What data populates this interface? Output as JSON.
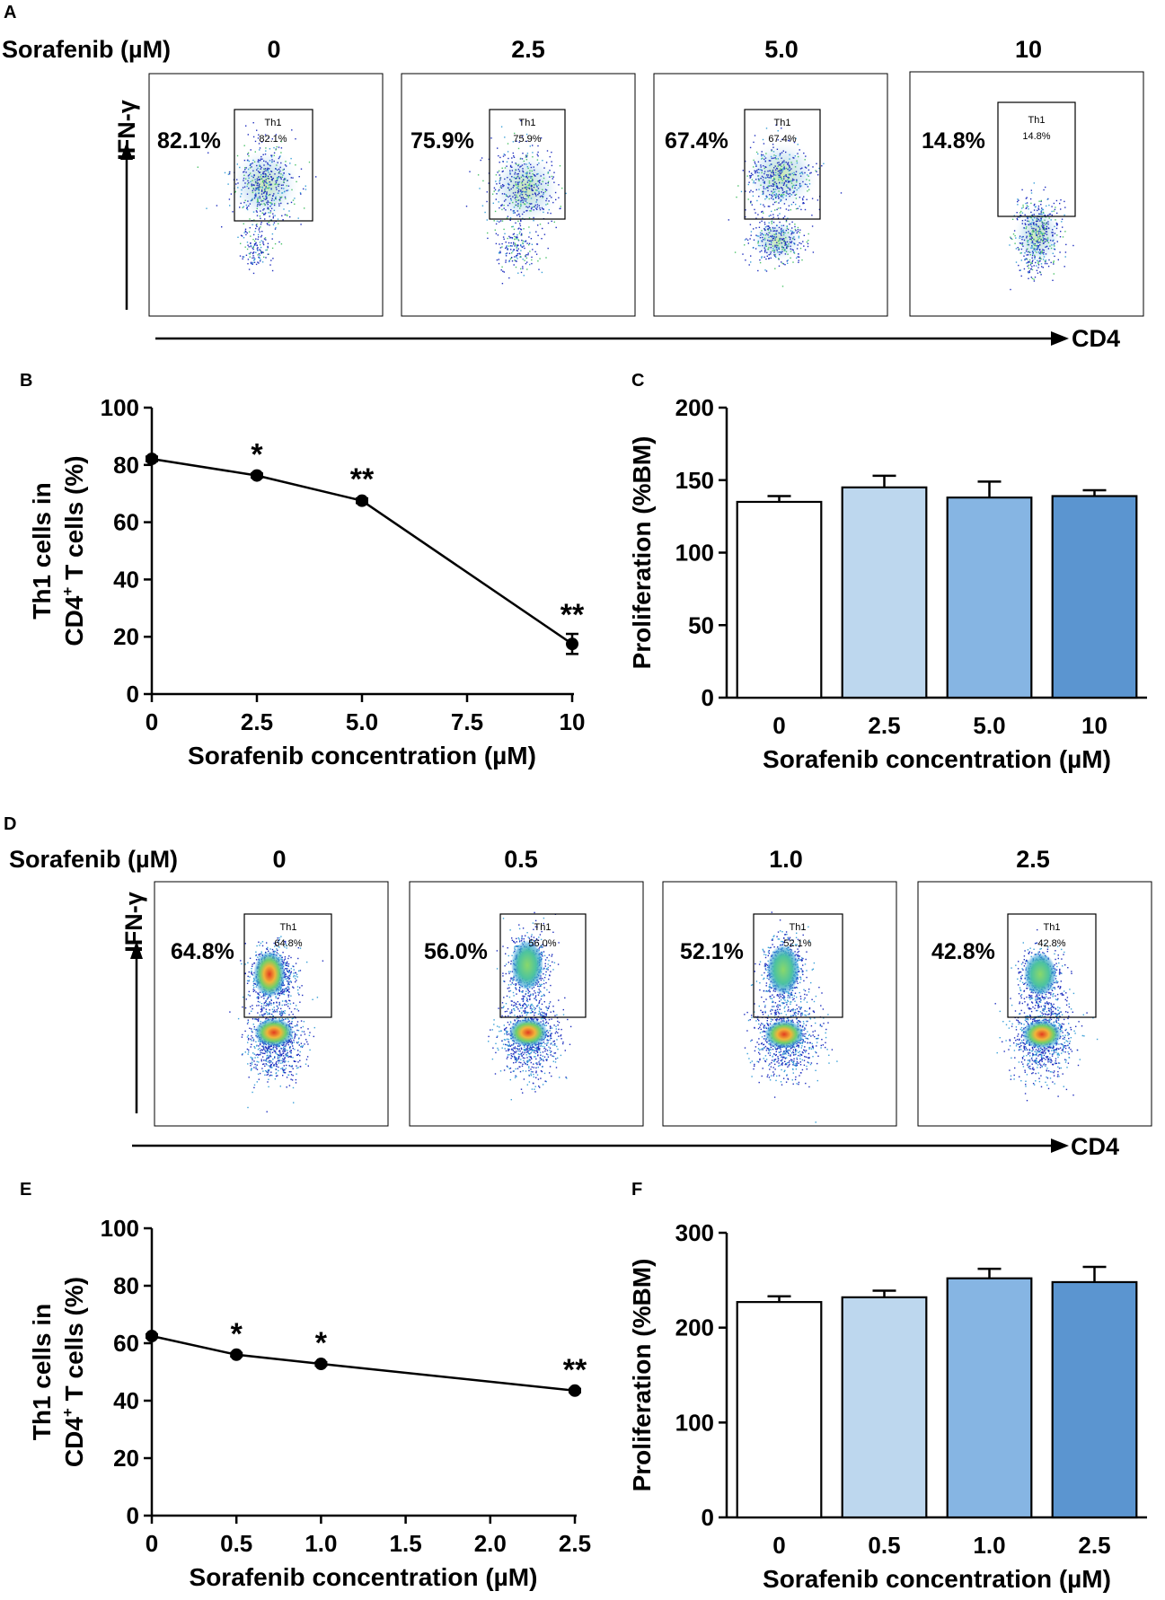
{
  "panels": {
    "A": {
      "letter": "A",
      "header_label": "Sorafenib (µM)",
      "concentrations": [
        "0",
        "2.5",
        "5.0",
        "10"
      ],
      "percents": [
        "82.1%",
        "75.9%",
        "67.4%",
        "14.8%"
      ],
      "gate_label": "Th1",
      "gate_values": [
        "82.1%",
        "75.9%",
        "67.4%",
        "14.8%"
      ],
      "y_axis": "IFN-γ",
      "x_axis": "CD4"
    },
    "D": {
      "letter": "D",
      "header_label": "Sorafenib (µM)",
      "concentrations": [
        "0",
        "0.5",
        "1.0",
        "2.5"
      ],
      "percents": [
        "64.8%",
        "56.0%",
        "52.1%",
        "42.8%"
      ],
      "gate_label": "Th1",
      "gate_values": [
        "64.8%",
        "56.0%",
        "52.1%",
        "42.8%"
      ],
      "y_axis": "IFN-γ",
      "x_axis": "CD4"
    },
    "B": {
      "letter": "B"
    },
    "C": {
      "letter": "C"
    },
    "E": {
      "letter": "E"
    },
    "F": {
      "letter": "F"
    }
  },
  "colors": {
    "ink": "#000000",
    "bar_fills": [
      "#ffffff",
      "#bdd7ee",
      "#86b5e3",
      "#5b95d0"
    ],
    "flow_low": "#1f2fbf",
    "flow_mid": "#3aa0d8",
    "flow_high": "#4cc36a",
    "flow_peak": "#f1e03a",
    "flow_hot": "#e23b1f"
  },
  "chart_data": [
    {
      "id": "B",
      "type": "line",
      "x": [
        0,
        2.5,
        5.0,
        10
      ],
      "y": [
        82.1,
        76.3,
        67.5,
        17.5
      ],
      "yerr": [
        0.8,
        0.7,
        0.8,
        3.5
      ],
      "significance": [
        "",
        "*",
        "**",
        "**"
      ],
      "xticks": [
        "0",
        "2.5",
        "5.0",
        "7.5",
        "10"
      ],
      "xtick_values": [
        0,
        2.5,
        5.0,
        7.5,
        10
      ],
      "yticks": [
        "0",
        "20",
        "40",
        "60",
        "80",
        "100"
      ],
      "xlim": [
        0,
        10
      ],
      "ylim": [
        0,
        100
      ],
      "ylabel_line1": "Th1 cells in",
      "ylabel_line2_pre": "CD4",
      "ylabel_line2_sup": "+",
      "ylabel_line2_post": " T cells (%)",
      "xlabel": "Sorafenib concentration (µM)"
    },
    {
      "id": "C",
      "type": "bar",
      "categories": [
        "0",
        "2.5",
        "5.0",
        "10"
      ],
      "values": [
        135,
        145,
        138,
        139
      ],
      "errors": [
        4,
        8,
        11,
        4
      ],
      "yticks": [
        "0",
        "50",
        "100",
        "150",
        "200"
      ],
      "ylim": [
        0,
        200
      ],
      "ylabel": "Proliferation (%BM)",
      "xlabel": "Sorafenib concentration (µM)"
    },
    {
      "id": "E",
      "type": "line",
      "x": [
        0,
        0.5,
        1.0,
        2.5
      ],
      "y": [
        62.5,
        56.0,
        52.8,
        43.5
      ],
      "yerr": [
        0.6,
        0.6,
        0.6,
        0.6
      ],
      "significance": [
        "",
        "*",
        "*",
        "**"
      ],
      "xticks": [
        "0",
        "0.5",
        "1.0",
        "1.5",
        "2.0",
        "2.5"
      ],
      "xtick_values": [
        0,
        0.5,
        1.0,
        1.5,
        2.0,
        2.5
      ],
      "yticks": [
        "0",
        "20",
        "40",
        "60",
        "80",
        "100"
      ],
      "xlim": [
        0,
        2.5
      ],
      "ylim": [
        0,
        100
      ],
      "ylabel_line1": "Th1 cells in",
      "ylabel_line2_pre": "CD4",
      "ylabel_line2_sup": "+",
      "ylabel_line2_post": " T cells (%)",
      "xlabel": "Sorafenib concentration (µM)"
    },
    {
      "id": "F",
      "type": "bar",
      "categories": [
        "0",
        "0.5",
        "1.0",
        "2.5"
      ],
      "values": [
        227,
        232,
        252,
        248
      ],
      "errors": [
        6,
        7,
        10,
        16
      ],
      "yticks": [
        "0",
        "100",
        "200",
        "300"
      ],
      "ylim": [
        0,
        300
      ],
      "ylabel": "Proliferation (%BM)",
      "xlabel": "Sorafenib concentration (µM)"
    }
  ]
}
